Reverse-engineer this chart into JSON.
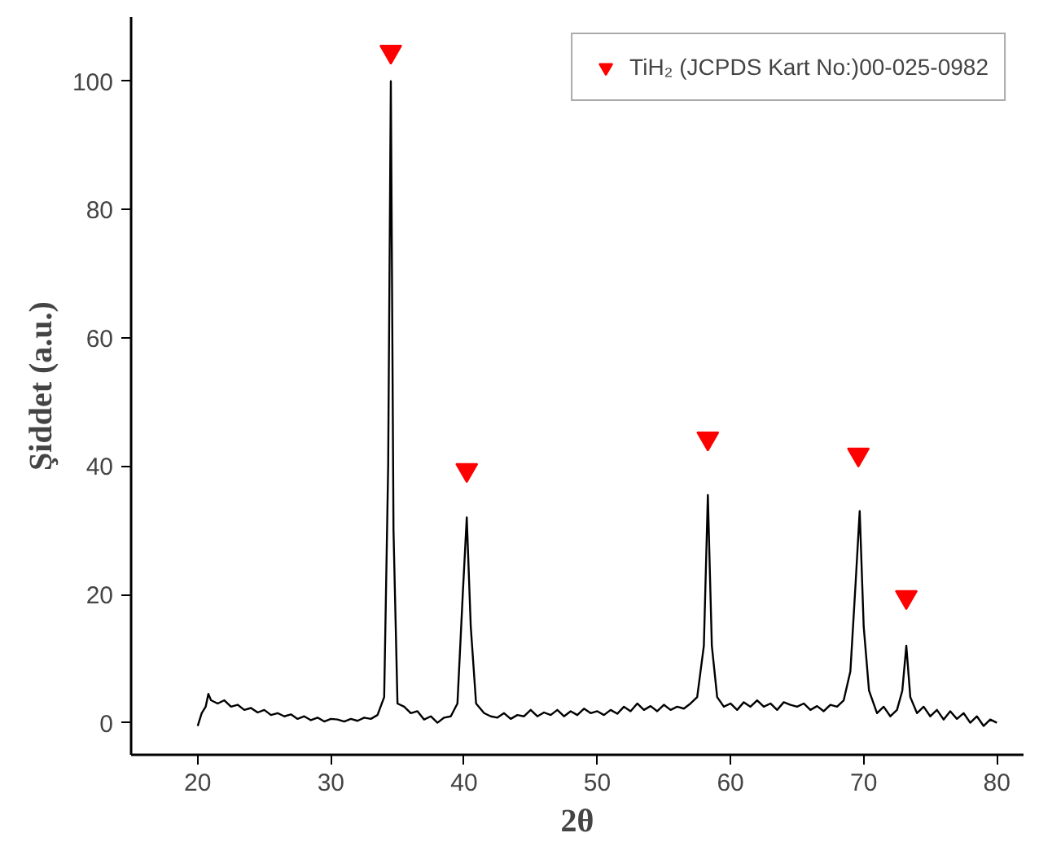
{
  "chart_data": {
    "type": "line",
    "xlabel": "2θ",
    "ylabel": "Şiddet (a.u.)",
    "xlim": [
      15,
      82
    ],
    "ylim": [
      -5,
      110
    ],
    "xticks": [
      20,
      30,
      40,
      50,
      60,
      70,
      80
    ],
    "yticks": [
      0,
      20,
      40,
      60,
      80,
      100
    ],
    "legend": "top right",
    "series": [
      {
        "color": "#000000",
        "x": [
          20.0,
          20.3,
          20.6,
          20.8,
          21.0,
          21.5,
          22,
          22.5,
          23,
          23.5,
          24,
          24.5,
          25,
          25.5,
          26,
          26.5,
          27,
          27.5,
          28,
          28.5,
          29,
          29.5,
          30,
          30.5,
          31,
          31.5,
          32,
          32.5,
          33,
          33.5,
          34.0,
          34.3,
          34.5,
          34.7,
          35.0,
          35.5,
          36,
          36.5,
          37,
          37.5,
          38,
          38.5,
          39,
          39.5,
          39.9,
          40.2,
          40.5,
          40.9,
          41.5,
          42,
          42.5,
          43,
          43.5,
          44,
          44.5,
          45,
          45.5,
          46,
          46.5,
          47,
          47.5,
          48,
          48.5,
          49,
          49.5,
          50,
          50.5,
          51,
          51.5,
          52,
          52.5,
          53,
          53.5,
          54,
          54.5,
          55,
          55.5,
          56,
          56.5,
          57,
          57.5,
          58.0,
          58.3,
          58.6,
          59.0,
          59.5,
          60,
          60.5,
          61,
          61.5,
          62,
          62.5,
          63,
          63.5,
          64,
          64.5,
          65,
          65.5,
          66,
          66.5,
          67,
          67.5,
          68,
          68.5,
          69.0,
          69.4,
          69.7,
          70.0,
          70.4,
          71,
          71.5,
          72,
          72.5,
          72.9,
          73.2,
          73.5,
          74,
          74.5,
          75,
          75.5,
          76,
          76.5,
          77,
          77.5,
          78,
          78.5,
          79,
          79.5,
          80
        ],
        "values": [
          -0.5,
          1.5,
          2.5,
          4.5,
          3.5,
          3,
          3.5,
          2.5,
          2.8,
          2,
          2.3,
          1.6,
          2,
          1.2,
          1.5,
          1,
          1.3,
          0.6,
          1,
          0.4,
          0.8,
          0.2,
          0.6,
          0.5,
          0.2,
          0.6,
          0.3,
          0.8,
          0.6,
          1.2,
          4,
          40,
          100,
          30,
          3,
          2.5,
          1.5,
          1.8,
          0.5,
          1,
          0,
          0.8,
          1,
          3,
          20,
          32,
          15,
          3,
          1.5,
          1,
          0.8,
          1.5,
          0.6,
          1.2,
          1,
          2,
          1,
          1.6,
          1.2,
          2,
          1,
          1.8,
          1.2,
          2.2,
          1.5,
          1.8,
          1.2,
          2,
          1.4,
          2.5,
          1.8,
          3,
          2,
          2.6,
          1.8,
          2.8,
          2,
          2.5,
          2.2,
          3,
          4,
          12,
          35.5,
          12,
          4,
          2.5,
          3,
          2,
          3.2,
          2.5,
          3.5,
          2.5,
          3,
          2,
          3.2,
          2.8,
          2.5,
          3,
          2,
          2.6,
          1.8,
          2.8,
          2.5,
          3.5,
          8,
          22,
          33,
          15,
          5,
          1.5,
          2.5,
          1,
          2,
          5,
          12,
          4,
          1.5,
          2.5,
          1,
          2,
          0.5,
          1.8,
          0.6,
          1.5,
          0,
          1,
          -0.5,
          0.5,
          0
        ]
      },
      {
        "type": "scatter",
        "name": "TiH₂ (JCPDS Kart No:)00-025-0982",
        "color": "#ff0000",
        "marker": "triangle",
        "x": [
          34.5,
          40.2,
          58.3,
          69.6,
          73.2
        ],
        "values": [
          104.6,
          39.4,
          44.3,
          41.8,
          19.6
        ]
      }
    ]
  }
}
